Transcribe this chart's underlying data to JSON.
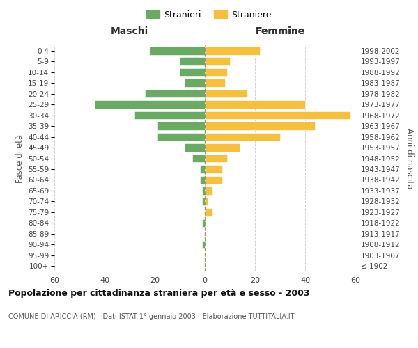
{
  "age_groups": [
    "100+",
    "95-99",
    "90-94",
    "85-89",
    "80-84",
    "75-79",
    "70-74",
    "65-69",
    "60-64",
    "55-59",
    "50-54",
    "45-49",
    "40-44",
    "35-39",
    "30-34",
    "25-29",
    "20-24",
    "15-19",
    "10-14",
    "5-9",
    "0-4"
  ],
  "birth_years": [
    "≤ 1902",
    "1903-1907",
    "1908-1912",
    "1913-1917",
    "1918-1922",
    "1923-1927",
    "1928-1932",
    "1933-1937",
    "1938-1942",
    "1943-1947",
    "1948-1952",
    "1953-1957",
    "1958-1962",
    "1963-1967",
    "1968-1972",
    "1973-1977",
    "1978-1982",
    "1983-1987",
    "1988-1992",
    "1993-1997",
    "1998-2002"
  ],
  "males": [
    0,
    0,
    1,
    0,
    1,
    0,
    1,
    1,
    2,
    2,
    5,
    8,
    19,
    19,
    28,
    44,
    24,
    8,
    10,
    10,
    22
  ],
  "females": [
    0,
    0,
    0,
    0,
    0,
    3,
    1,
    3,
    7,
    7,
    9,
    14,
    30,
    44,
    58,
    40,
    17,
    8,
    9,
    10,
    22
  ],
  "male_color": "#6aaa64",
  "female_color": "#f5c040",
  "title": "Popolazione per cittadinanza straniera per età e sesso - 2003",
  "subtitle": "COMUNE DI ARICCIA (RM) - Dati ISTAT 1° gennaio 2003 - Elaborazione TUTTITALIA.IT",
  "xlabel_left": "Maschi",
  "xlabel_right": "Femmine",
  "ylabel_left": "Fasce di età",
  "ylabel_right": "Anni di nascita",
  "legend_male": "Stranieri",
  "legend_female": "Straniere",
  "xlim": 60,
  "background_color": "#ffffff",
  "grid_color": "#cccccc"
}
